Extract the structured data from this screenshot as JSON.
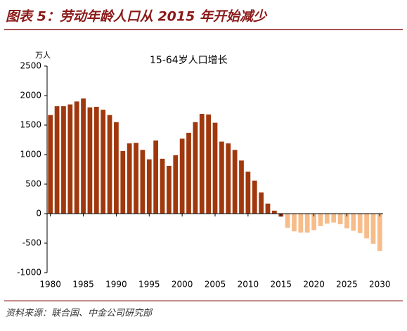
{
  "header": {
    "title": "图表 5：劳动年龄人口从 2015 年开始减少"
  },
  "chart_data": {
    "type": "bar",
    "title": "15-64岁人口增长",
    "y_unit": "万人",
    "x": [
      1980,
      1981,
      1982,
      1983,
      1984,
      1985,
      1986,
      1987,
      1988,
      1989,
      1990,
      1991,
      1992,
      1993,
      1994,
      1995,
      1996,
      1997,
      1998,
      1999,
      2000,
      2001,
      2002,
      2003,
      2004,
      2005,
      2006,
      2007,
      2008,
      2009,
      2010,
      2011,
      2012,
      2013,
      2014,
      2015,
      2016,
      2017,
      2018,
      2019,
      2020,
      2021,
      2022,
      2023,
      2024,
      2025,
      2026,
      2027,
      2028,
      2029,
      2030
    ],
    "values": [
      1670,
      1820,
      1820,
      1850,
      1900,
      1950,
      1800,
      1810,
      1760,
      1670,
      1550,
      1060,
      1190,
      1200,
      1080,
      920,
      1240,
      930,
      810,
      990,
      1270,
      1370,
      1550,
      1690,
      1680,
      1540,
      1220,
      1190,
      1080,
      900,
      710,
      560,
      360,
      170,
      50,
      -50,
      -240,
      -300,
      -320,
      -320,
      -280,
      -210,
      -170,
      -150,
      -180,
      -250,
      -290,
      -330,
      -420,
      -510,
      -630
    ],
    "colors": [
      "#a0380e",
      "#a0380e",
      "#a0380e",
      "#a0380e",
      "#a0380e",
      "#a0380e",
      "#a0380e",
      "#a0380e",
      "#a0380e",
      "#a0380e",
      "#a0380e",
      "#a0380e",
      "#a0380e",
      "#a0380e",
      "#a0380e",
      "#a0380e",
      "#a0380e",
      "#a0380e",
      "#a0380e",
      "#a0380e",
      "#a0380e",
      "#a0380e",
      "#a0380e",
      "#a0380e",
      "#a0380e",
      "#a0380e",
      "#a0380e",
      "#a0380e",
      "#a0380e",
      "#a0380e",
      "#a0380e",
      "#a0380e",
      "#a0380e",
      "#a0380e",
      "#a0380e",
      "#a0380e",
      "#f6bd8a",
      "#f6bd8a",
      "#f6bd8a",
      "#f6bd8a",
      "#f6bd8a",
      "#f6bd8a",
      "#f6bd8a",
      "#f6bd8a",
      "#f6bd8a",
      "#f6bd8a",
      "#f6bd8a",
      "#f6bd8a",
      "#f6bd8a",
      "#f6bd8a",
      "#f6bd8a"
    ],
    "xlim": [
      1979.5,
      2030.5
    ],
    "xticks": [
      1980,
      1985,
      1990,
      1995,
      2000,
      2005,
      2010,
      2015,
      2020,
      2025,
      2030
    ],
    "ylim": [
      -1000,
      2500
    ],
    "yticks": [
      -1000,
      -500,
      0,
      500,
      1000,
      1500,
      2000,
      2500
    ],
    "grid": false
  },
  "footer": {
    "source": "资料来源：联合国、中金公司研究部"
  }
}
